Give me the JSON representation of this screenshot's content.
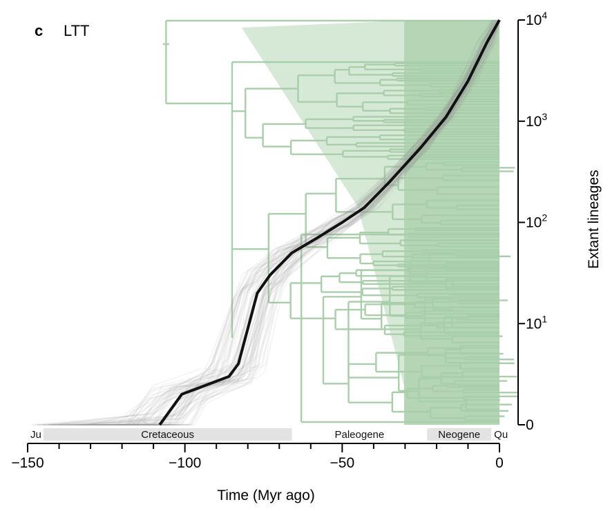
{
  "panel": {
    "letter": "c",
    "title": "LTT"
  },
  "chart_data": {
    "type": "line",
    "xlabel": "Time (Myr ago)",
    "ylabel": "Extant lineages",
    "xlim": [
      -150,
      0
    ],
    "x_ticks": [
      -150,
      -100,
      -50,
      0
    ],
    "x_tick_labels": [
      "−150",
      "−100",
      "−50",
      "0"
    ],
    "y_scale": "log",
    "y_ticks": [
      {
        "base": "0",
        "exp": ""
      },
      {
        "base": "10",
        "exp": "1"
      },
      {
        "base": "10",
        "exp": "2"
      },
      {
        "base": "10",
        "exp": "3"
      },
      {
        "base": "10",
        "exp": "4"
      }
    ],
    "series": [
      {
        "color": "#111111",
        "x": [
          -108,
          -101,
          -86,
          -83,
          -77,
          -73,
          -66,
          -58,
          -50,
          -43,
          -35,
          -25,
          -17,
          -10,
          -4,
          0
        ],
        "y": [
          1,
          2,
          3,
          4,
          20,
          30,
          50,
          70,
          100,
          140,
          250,
          550,
          1100,
          2500,
          6000,
          10000
        ]
      }
    ],
    "periods": [
      {
        "label": "Ju",
        "start": -150,
        "end": -145,
        "fill": "#ffffff"
      },
      {
        "label": "Cretaceous",
        "start": -145,
        "end": -66,
        "fill": "#e3e3e3"
      },
      {
        "label": "Paleogene",
        "start": -66,
        "end": -23,
        "fill": "#ffffff"
      },
      {
        "label": "Neogene",
        "start": -23,
        "end": -2.6,
        "fill": "#e3e3e3"
      },
      {
        "label": "Qu",
        "start": -2.6,
        "end": 0,
        "fill": "#ffffff"
      }
    ],
    "colors": {
      "tree": "#a9ceaa",
      "tree_fill": "#b4d6b5",
      "bootstrap": "#9a9a9a",
      "main": "#111111"
    }
  }
}
